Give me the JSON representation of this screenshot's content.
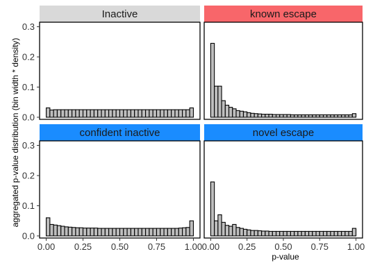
{
  "chart_data": {
    "type": "bar",
    "subtype": "faceted-histogram",
    "ylabel": "aggregated p-value distribution (bin width * density)",
    "xlabel": "p-value",
    "xlim": [
      0,
      1
    ],
    "ylim": [
      0,
      0.3
    ],
    "x_ticks": [
      "0.00",
      "0.25",
      "0.50",
      "0.75",
      "1.00"
    ],
    "y_ticks": [
      "0.0",
      "0.1",
      "0.2",
      "0.3"
    ],
    "bin_width": 0.025,
    "bar_fill": "#bebebe",
    "panels": [
      {
        "name": "Inactive",
        "strip_color": "#d9d9d9",
        "values": [
          0.031,
          0.024,
          0.025,
          0.025,
          0.025,
          0.025,
          0.025,
          0.025,
          0.025,
          0.025,
          0.025,
          0.025,
          0.025,
          0.025,
          0.025,
          0.025,
          0.025,
          0.025,
          0.025,
          0.025,
          0.025,
          0.025,
          0.025,
          0.025,
          0.025,
          0.025,
          0.025,
          0.025,
          0.025,
          0.025,
          0.025,
          0.025,
          0.025,
          0.025,
          0.025,
          0.025,
          0.025,
          0.025,
          0.025,
          0.031
        ]
      },
      {
        "name": "known escape",
        "strip_color": "#f8666a",
        "values": [
          0.245,
          0.103,
          0.103,
          0.055,
          0.04,
          0.033,
          0.028,
          0.022,
          0.02,
          0.018,
          0.015,
          0.013,
          0.012,
          0.011,
          0.01,
          0.01,
          0.01,
          0.009,
          0.009,
          0.009,
          0.009,
          0.009,
          0.008,
          0.008,
          0.008,
          0.008,
          0.008,
          0.008,
          0.008,
          0.008,
          0.008,
          0.008,
          0.008,
          0.008,
          0.008,
          0.008,
          0.008,
          0.008,
          0.008,
          0.012
        ]
      },
      {
        "name": "confident inactive",
        "strip_color": "#1a8cff",
        "values": [
          0.06,
          0.038,
          0.036,
          0.034,
          0.032,
          0.03,
          0.029,
          0.028,
          0.027,
          0.027,
          0.026,
          0.026,
          0.026,
          0.026,
          0.025,
          0.025,
          0.025,
          0.025,
          0.025,
          0.025,
          0.025,
          0.025,
          0.025,
          0.025,
          0.025,
          0.025,
          0.025,
          0.025,
          0.025,
          0.025,
          0.025,
          0.025,
          0.025,
          0.025,
          0.025,
          0.025,
          0.026,
          0.027,
          0.028,
          0.05
        ]
      },
      {
        "name": "novel escape",
        "strip_color": "#1a8cff",
        "values": [
          0.179,
          0.05,
          0.07,
          0.045,
          0.035,
          0.032,
          0.038,
          0.028,
          0.025,
          0.022,
          0.02,
          0.018,
          0.018,
          0.017,
          0.016,
          0.016,
          0.015,
          0.015,
          0.015,
          0.015,
          0.015,
          0.015,
          0.015,
          0.015,
          0.015,
          0.015,
          0.015,
          0.015,
          0.015,
          0.015,
          0.015,
          0.015,
          0.015,
          0.015,
          0.015,
          0.015,
          0.015,
          0.015,
          0.015,
          0.025
        ]
      }
    ]
  }
}
